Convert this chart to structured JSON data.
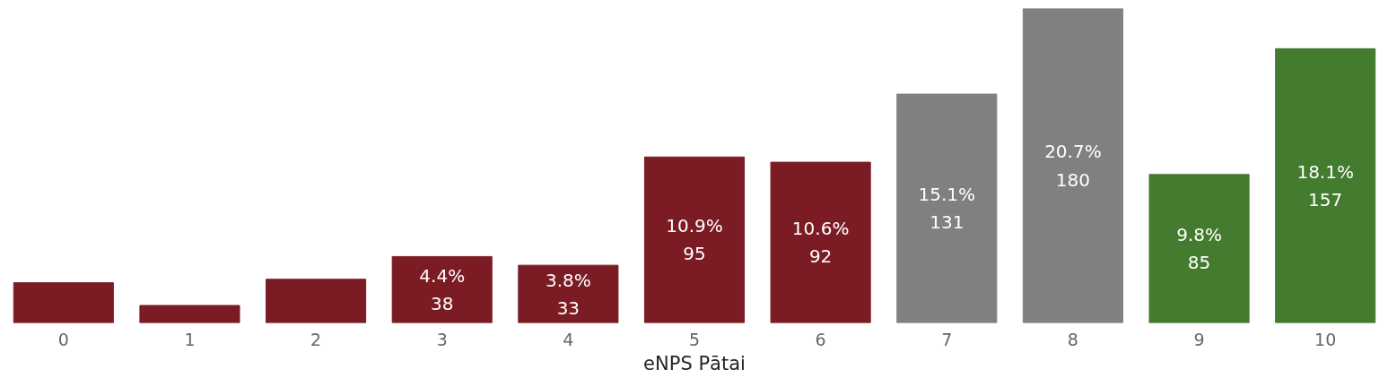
{
  "chart_data": {
    "type": "bar",
    "xlabel": "eNPS Pātai",
    "categories": [
      "0",
      "1",
      "2",
      "3",
      "4",
      "5",
      "6",
      "7",
      "8",
      "9",
      "10"
    ],
    "values": [
      23,
      10,
      25,
      38,
      33,
      95,
      92,
      131,
      180,
      85,
      157
    ],
    "colors": [
      "#7b1c25",
      "#7b1c25",
      "#7b1c25",
      "#7b1c25",
      "#7b1c25",
      "#7b1c25",
      "#7b1c25",
      "#808080",
      "#808080",
      "#437b2f",
      "#437b2f"
    ],
    "value_labels": [
      null,
      null,
      null,
      "4.4%\n38",
      "3.8%\n33",
      "10.9%\n95",
      "10.6%\n92",
      "15.1%\n131",
      "20.7%\n180",
      "9.8%\n85",
      "18.1%\n157"
    ],
    "grid": false
  }
}
